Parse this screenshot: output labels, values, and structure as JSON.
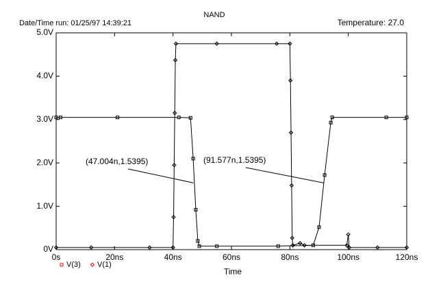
{
  "chart_data": {
    "type": "line",
    "title": "NAND",
    "subtitle": "Date/Time run: 01/25/97 14:39:21",
    "temperature": "Temperature: 27.0",
    "xlabel": "Time",
    "xlim": [
      0,
      120
    ],
    "xticks": [
      {
        "value": 0,
        "label": "0s"
      },
      {
        "value": 20,
        "label": "20ns"
      },
      {
        "value": 40,
        "label": "40ns"
      },
      {
        "value": 60,
        "label": "60ns"
      },
      {
        "value": 80,
        "label": "80ns"
      },
      {
        "value": 100,
        "label": "100ns"
      },
      {
        "value": 120,
        "label": "120ns"
      }
    ],
    "ylim": [
      0,
      5
    ],
    "yticks": [
      {
        "value": 0,
        "label": "0V"
      },
      {
        "value": 1,
        "label": "1.0V"
      },
      {
        "value": 2,
        "label": "2.0V"
      },
      {
        "value": 3,
        "label": "3.0V"
      },
      {
        "value": 4,
        "label": "4.0V"
      },
      {
        "value": 5,
        "label": "5.0V"
      }
    ],
    "series": [
      {
        "name": "V(3)",
        "color": "#ff0000",
        "marker": "square",
        "x": [
          0,
          1.5,
          21,
          42,
          46,
          46.9,
          47.8,
          48.5,
          49,
          55,
          76,
          88,
          90,
          91.9,
          94,
          94.5,
          113,
          120
        ],
        "values": [
          3.05,
          3.05,
          3.05,
          3.05,
          3.04,
          2.1,
          0.92,
          0.2,
          0.08,
          0.08,
          0.08,
          0.1,
          0.52,
          1.72,
          2.93,
          3.05,
          3.05,
          3.05
        ]
      },
      {
        "name": "V(1)",
        "color": "#ff0000",
        "marker": "diamond",
        "x": [
          0,
          12,
          32,
          40,
          40.2,
          40.4,
          40.6,
          40.8,
          41,
          55,
          75.5,
          80,
          80.2,
          80.4,
          80.6,
          80.8,
          81,
          83.5,
          85,
          99.5,
          100,
          100.3,
          110,
          120
        ],
        "values": [
          0.05,
          0.05,
          0.05,
          0.05,
          0.75,
          1.95,
          3.15,
          4.37,
          4.75,
          4.75,
          4.75,
          4.75,
          3.9,
          2.7,
          1.48,
          0.27,
          0.1,
          0.15,
          0.1,
          0.1,
          0.35,
          0.05,
          0.05,
          0.05
        ]
      }
    ],
    "annotations": [
      {
        "text": "(47.004n,1.5395)",
        "x": 47.004,
        "y": 1.5395
      },
      {
        "text": "(91.577n,1.5395)",
        "x": 91.577,
        "y": 1.5395
      }
    ]
  }
}
